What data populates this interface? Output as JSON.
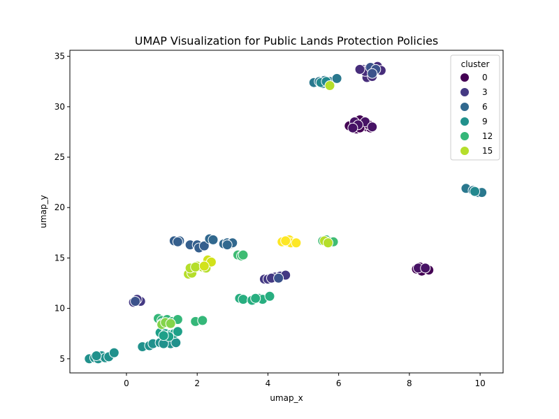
{
  "chart_data": {
    "type": "scatter",
    "title": "UMAP Visualization for Public Lands Protection Policies",
    "xlabel": "umap_x",
    "ylabel": "umap_y",
    "xlim": [
      -1.6,
      10.65
    ],
    "ylim": [
      3.6,
      35.6
    ],
    "xticks": [
      0,
      2,
      4,
      6,
      8,
      10
    ],
    "yticks": [
      5,
      10,
      15,
      20,
      25,
      30,
      35
    ],
    "grid": false,
    "legend": {
      "title": "cluster",
      "placement": "top-right",
      "entries": [
        {
          "label": "0",
          "color": "#440154"
        },
        {
          "label": "3",
          "color": "#443983"
        },
        {
          "label": "6",
          "color": "#31688e"
        },
        {
          "label": "9",
          "color": "#21918c"
        },
        {
          "label": "12",
          "color": "#35b779"
        },
        {
          "label": "15",
          "color": "#b5de2b"
        }
      ]
    },
    "clusters": [
      {
        "cluster": 0,
        "color": "#440154",
        "points": [
          [
            6.4,
            28.2
          ],
          [
            6.5,
            28.0
          ],
          [
            6.6,
            28.7
          ],
          [
            6.7,
            28.3
          ],
          [
            6.8,
            28.0
          ],
          [
            6.9,
            27.9
          ],
          [
            6.5,
            27.8
          ],
          [
            6.3,
            28.1
          ],
          [
            6.85,
            28.2
          ],
          [
            6.6,
            27.9
          ],
          [
            8.2,
            13.9
          ],
          [
            8.3,
            14.1
          ],
          [
            8.4,
            13.8
          ],
          [
            8.5,
            13.9
          ],
          [
            8.35,
            13.7
          ],
          [
            8.55,
            13.8
          ]
        ]
      },
      {
        "cluster": 1,
        "color": "#471365",
        "points": [
          [
            6.45,
            28.5
          ],
          [
            6.75,
            28.5
          ],
          [
            6.55,
            28.2
          ],
          [
            6.95,
            28.0
          ],
          [
            6.4,
            27.9
          ],
          [
            8.25,
            14.0
          ],
          [
            8.45,
            14.0
          ]
        ]
      },
      {
        "cluster": 2,
        "color": "#472d7b",
        "points": [
          [
            6.7,
            33.7
          ],
          [
            6.85,
            33.8
          ],
          [
            7.0,
            33.6
          ],
          [
            7.1,
            34.0
          ],
          [
            7.2,
            33.6
          ],
          [
            6.8,
            32.9
          ],
          [
            6.95,
            33.0
          ],
          [
            6.75,
            33.5
          ],
          [
            6.6,
            33.7
          ]
        ]
      },
      {
        "cluster": 3,
        "color": "#443983",
        "points": [
          [
            0.2,
            10.6
          ],
          [
            0.35,
            10.8
          ],
          [
            0.4,
            10.7
          ],
          [
            0.3,
            10.9
          ],
          [
            3.9,
            12.9
          ],
          [
            4.0,
            12.9
          ],
          [
            4.2,
            13.1
          ],
          [
            4.35,
            13.2
          ],
          [
            4.5,
            13.3
          ],
          [
            4.1,
            13.0
          ]
        ]
      },
      {
        "cluster": 4,
        "color": "#3b528b",
        "points": [
          [
            6.9,
            33.9
          ],
          [
            7.05,
            33.7
          ],
          [
            6.95,
            33.3
          ],
          [
            0.25,
            10.7
          ],
          [
            4.3,
            13.0
          ]
        ]
      },
      {
        "cluster": 5,
        "color": "#355f8d",
        "points": [
          [
            1.35,
            16.7
          ],
          [
            1.5,
            16.7
          ],
          [
            1.8,
            16.3
          ],
          [
            2.0,
            16.3
          ],
          [
            2.05,
            16.0
          ],
          [
            2.2,
            16.2
          ],
          [
            1.45,
            16.6
          ]
        ]
      },
      {
        "cluster": 6,
        "color": "#31688e",
        "points": [
          [
            2.35,
            16.9
          ],
          [
            2.45,
            16.8
          ],
          [
            2.75,
            16.4
          ],
          [
            2.85,
            16.5
          ],
          [
            2.95,
            16.4
          ],
          [
            3.0,
            16.5
          ],
          [
            2.85,
            16.3
          ]
        ]
      },
      {
        "cluster": 7,
        "color": "#2a788e",
        "points": [
          [
            5.3,
            32.4
          ],
          [
            5.45,
            32.5
          ],
          [
            5.6,
            32.6
          ],
          [
            5.75,
            32.5
          ],
          [
            5.95,
            32.8
          ],
          [
            5.55,
            32.3
          ],
          [
            9.6,
            21.9
          ],
          [
            9.8,
            21.7
          ],
          [
            9.95,
            21.5
          ],
          [
            10.05,
            21.5
          ]
        ]
      },
      {
        "cluster": 8,
        "color": "#23888e",
        "points": [
          [
            5.5,
            32.4
          ],
          [
            5.65,
            32.5
          ],
          [
            9.85,
            21.6
          ]
        ]
      },
      {
        "cluster": 9,
        "color": "#21918c",
        "points": [
          [
            -1.05,
            5.0
          ],
          [
            -0.9,
            5.1
          ],
          [
            -0.8,
            5.0
          ],
          [
            -0.7,
            5.3
          ],
          [
            -0.6,
            5.1
          ],
          [
            -0.5,
            5.2
          ],
          [
            -0.35,
            5.6
          ],
          [
            -0.85,
            5.3
          ],
          [
            0.45,
            6.2
          ],
          [
            0.65,
            6.3
          ],
          [
            0.75,
            6.5
          ],
          [
            0.95,
            6.6
          ],
          [
            1.15,
            6.7
          ],
          [
            1.25,
            6.5
          ],
          [
            1.4,
            6.6
          ],
          [
            1.05,
            6.5
          ]
        ]
      },
      {
        "cluster": 10,
        "color": "#1fa088",
        "points": [
          [
            0.95,
            7.6
          ],
          [
            1.1,
            7.5
          ],
          [
            1.25,
            7.4
          ],
          [
            1.35,
            7.5
          ],
          [
            1.45,
            7.7
          ],
          [
            1.2,
            7.2
          ],
          [
            1.05,
            7.3
          ]
        ]
      },
      {
        "cluster": 11,
        "color": "#28ae80",
        "points": [
          [
            3.2,
            11.0
          ],
          [
            3.3,
            10.9
          ],
          [
            3.55,
            10.8
          ],
          [
            3.75,
            11.0
          ],
          [
            3.85,
            10.9
          ],
          [
            4.05,
            11.2
          ],
          [
            3.65,
            11.0
          ]
        ]
      },
      {
        "cluster": 12,
        "color": "#35b779",
        "points": [
          [
            0.9,
            9.0
          ],
          [
            1.0,
            8.8
          ],
          [
            1.15,
            8.9
          ],
          [
            1.3,
            8.7
          ],
          [
            1.45,
            8.9
          ],
          [
            1.0,
            8.5
          ],
          [
            1.95,
            8.7
          ],
          [
            2.15,
            8.8
          ]
        ]
      },
      {
        "cluster": 13,
        "color": "#3fbc73",
        "points": [
          [
            3.15,
            15.3
          ],
          [
            3.25,
            15.2
          ],
          [
            3.3,
            15.3
          ],
          [
            5.55,
            16.7
          ],
          [
            5.65,
            16.8
          ],
          [
            5.75,
            16.6
          ],
          [
            5.85,
            16.6
          ]
        ]
      },
      {
        "cluster": 14,
        "color": "#84d44b",
        "points": [
          [
            1.0,
            8.4
          ],
          [
            1.1,
            8.6
          ],
          [
            1.25,
            8.5
          ]
        ]
      },
      {
        "cluster": 15,
        "color": "#b5de2b",
        "points": [
          [
            1.75,
            13.4
          ],
          [
            1.85,
            13.5
          ],
          [
            1.8,
            14.0
          ],
          [
            2.0,
            14.2
          ],
          [
            2.15,
            14.1
          ],
          [
            2.25,
            14.0
          ],
          [
            1.95,
            14.1
          ],
          [
            5.6,
            16.7
          ],
          [
            5.7,
            16.5
          ],
          [
            5.75,
            32.1
          ]
        ]
      },
      {
        "cluster": 16,
        "color": "#d2e21b",
        "points": [
          [
            2.3,
            14.8
          ],
          [
            2.4,
            14.6
          ],
          [
            2.2,
            14.2
          ]
        ]
      },
      {
        "cluster": 17,
        "color": "#fde725",
        "points": [
          [
            4.4,
            16.6
          ],
          [
            4.55,
            16.6
          ],
          [
            4.6,
            16.8
          ],
          [
            4.65,
            16.5
          ],
          [
            4.8,
            16.5
          ],
          [
            4.5,
            16.7
          ]
        ]
      }
    ]
  }
}
